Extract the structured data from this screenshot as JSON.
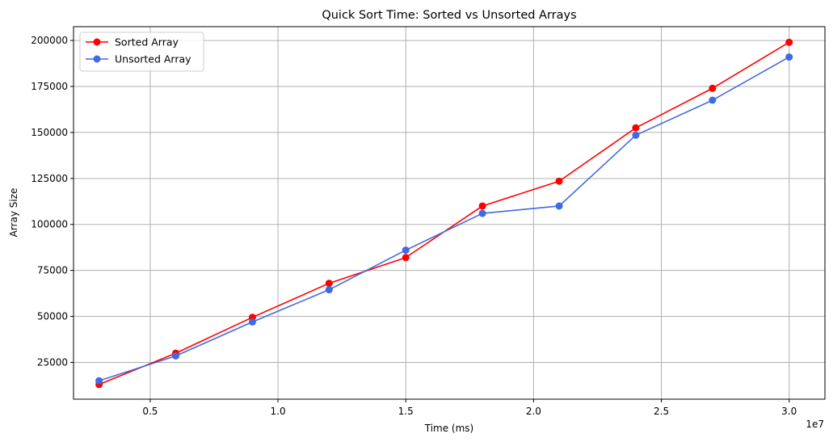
{
  "chart_data": {
    "type": "line",
    "title": "Quick Sort Time: Sorted vs Unsorted Arrays",
    "xlabel": "Time (ms)",
    "ylabel": "Array Size",
    "x_offset_text": "1e7",
    "xlim": [
      2000000,
      31400000
    ],
    "ylim": [
      5000,
      207500
    ],
    "x_ticks": [
      5000000,
      10000000,
      15000000,
      20000000,
      25000000,
      30000000
    ],
    "x_tick_labels": [
      "0.5",
      "1.0",
      "1.5",
      "2.0",
      "2.5",
      "3.0"
    ],
    "y_ticks": [
      25000,
      50000,
      75000,
      100000,
      125000,
      150000,
      175000,
      200000
    ],
    "y_tick_labels": [
      "25000",
      "50000",
      "75000",
      "100000",
      "125000",
      "150000",
      "175000",
      "200000"
    ],
    "grid": true,
    "legend_position": "top-left",
    "series": [
      {
        "name": "Sorted Array",
        "color": "#ff0000",
        "marker": "circle",
        "x": [
          3000000,
          6000000,
          9000000,
          12000000,
          15000000,
          18000000,
          21000000,
          24000000,
          27000000,
          30000000
        ],
        "y": [
          13000,
          30000,
          49500,
          68000,
          82000,
          110000,
          123500,
          152500,
          174000,
          199000
        ]
      },
      {
        "name": "Unsorted Array",
        "color": "#4169e1",
        "marker": "circle",
        "x": [
          3000000,
          6000000,
          9000000,
          12000000,
          15000000,
          18000000,
          21000000,
          24000000,
          27000000,
          30000000
        ],
        "y": [
          15000,
          28500,
          47000,
          64500,
          86000,
          106000,
          110000,
          148500,
          167500,
          191000
        ]
      }
    ]
  }
}
